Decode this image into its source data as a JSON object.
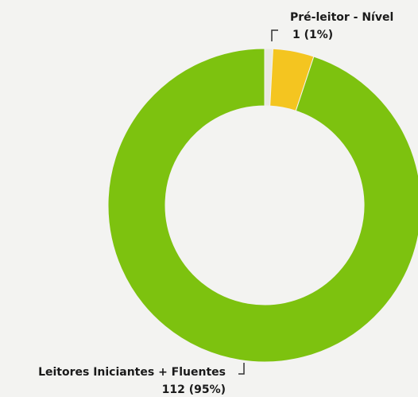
{
  "chart_data": {
    "type": "donut",
    "categories": [
      "Pré-leitor - Nível",
      null,
      "Leitores Iniciantes + Fluentes"
    ],
    "values": [
      1,
      5,
      112
    ],
    "value_labels": [
      "1 (1%)",
      null,
      "112 (95%)"
    ],
    "colors": [
      "#e9e9e2",
      "#f4c520",
      "#7dc20f"
    ]
  }
}
